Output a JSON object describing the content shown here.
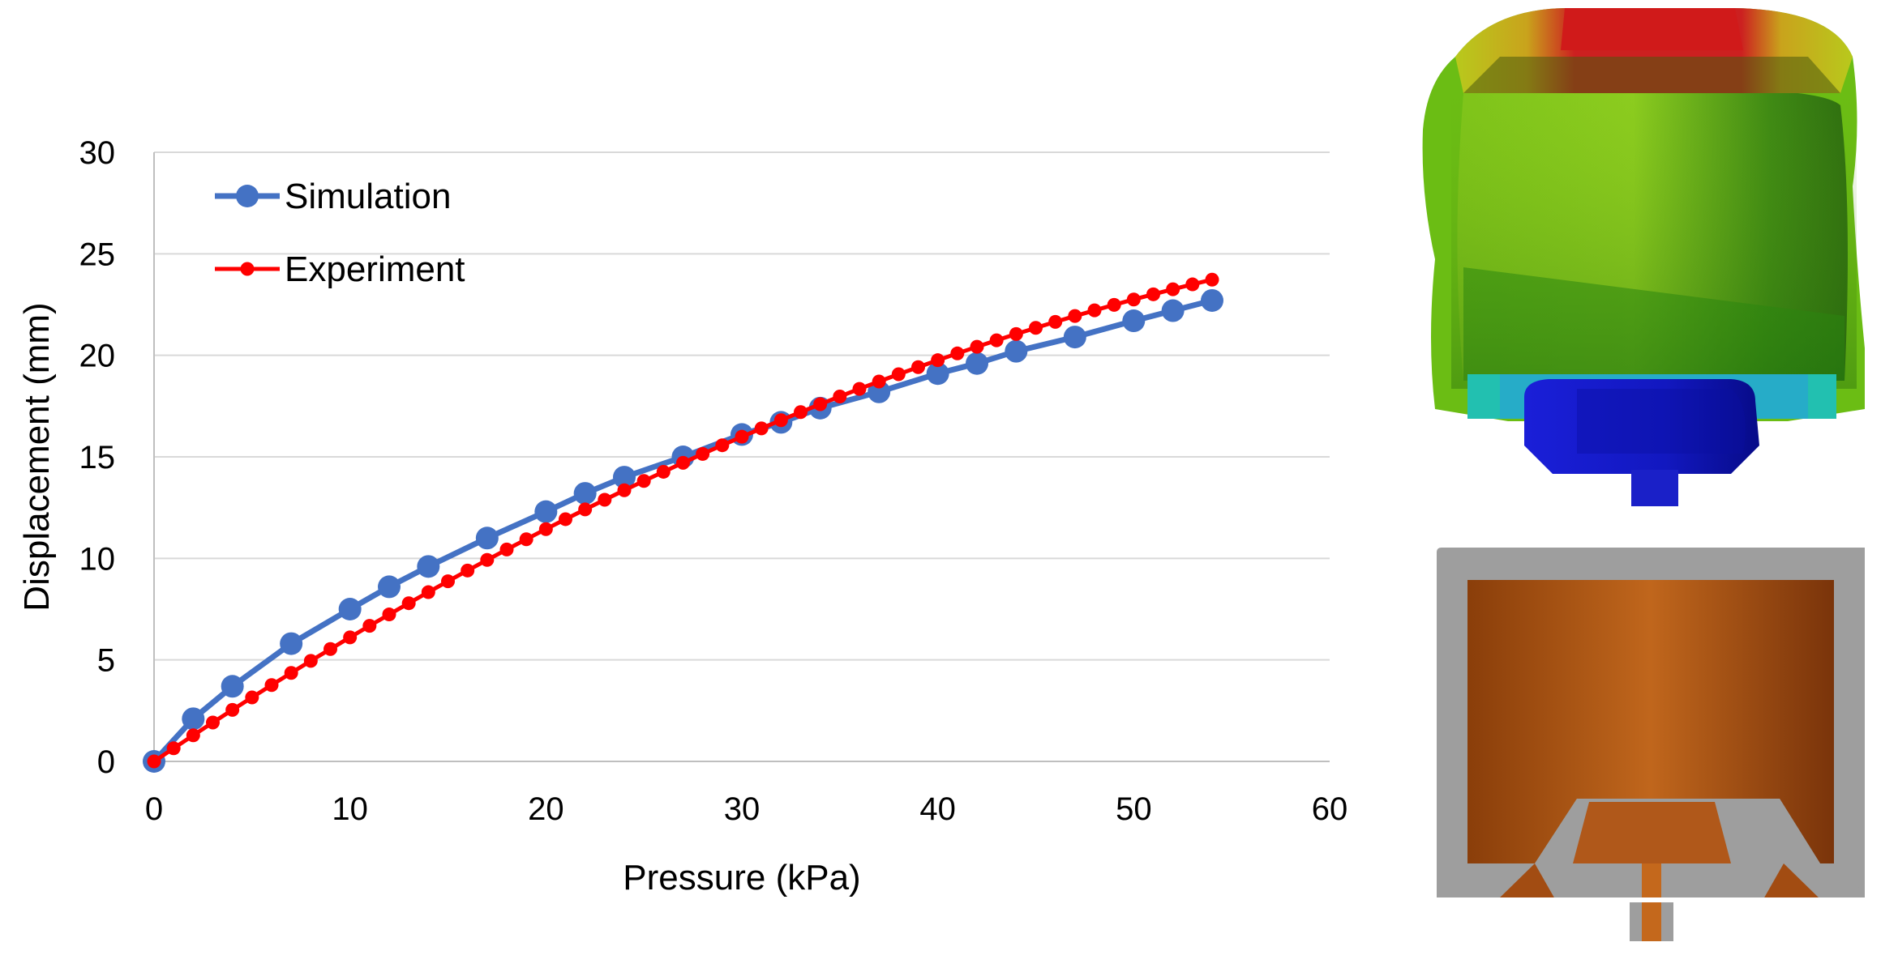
{
  "chart_data": {
    "type": "line",
    "title": "",
    "xlabel": "Pressure (kPa)",
    "ylabel": "Displacement (mm)",
    "xlim": [
      0,
      60
    ],
    "ylim": [
      0,
      30
    ],
    "xticks": [
      0,
      10,
      20,
      30,
      40,
      50,
      60
    ],
    "yticks": [
      0,
      5,
      10,
      15,
      20,
      25,
      30
    ],
    "grid": "horizontal",
    "legend_position": "top-left",
    "series": [
      {
        "name": "Simulation",
        "color": "#4472C4",
        "marker": "circle-large",
        "x": [
          0,
          2,
          4,
          7,
          10,
          12,
          14,
          17,
          20,
          22,
          24,
          27,
          30,
          32,
          34,
          37,
          40,
          42,
          44,
          47,
          50,
          52,
          54
        ],
        "y": [
          0,
          2.1,
          3.7,
          5.8,
          7.5,
          8.6,
          9.6,
          11.0,
          12.3,
          13.2,
          14.0,
          15.0,
          16.1,
          16.7,
          17.4,
          18.2,
          19.1,
          19.6,
          20.2,
          20.9,
          21.7,
          22.2,
          22.7
        ]
      },
      {
        "name": "Experiment",
        "color": "#FF0000",
        "marker": "circle-small",
        "x_start": 0,
        "x_end": 54,
        "x_step": 1,
        "curve": {
          "a": 0.65,
          "b": -0.0039
        }
      }
    ]
  },
  "images": {
    "deformed_model": "fea-deformation-contour",
    "cross_section": "actuator-cross-section"
  }
}
